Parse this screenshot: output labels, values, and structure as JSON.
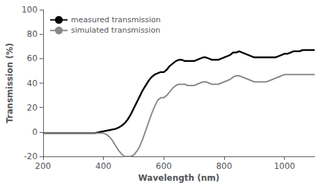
{
  "chart_data": {
    "type": "line",
    "title": "",
    "xlabel": "Wavelength (nm)",
    "ylabel": "Transmission (%)",
    "xlim": [
      200,
      1100
    ],
    "ylim": [
      -20,
      100
    ],
    "xticks": [
      200,
      400,
      600,
      800,
      1000
    ],
    "yticks": [
      -20,
      0,
      20,
      40,
      60,
      80,
      100
    ],
    "grid": false,
    "legend": "upper left",
    "x": [
      200,
      210,
      220,
      230,
      240,
      250,
      260,
      270,
      280,
      290,
      300,
      310,
      320,
      330,
      340,
      350,
      360,
      370,
      380,
      390,
      400,
      410,
      420,
      430,
      440,
      450,
      460,
      470,
      480,
      490,
      500,
      510,
      520,
      530,
      540,
      550,
      560,
      570,
      580,
      590,
      600,
      610,
      620,
      630,
      640,
      650,
      660,
      670,
      680,
      690,
      700,
      710,
      720,
      730,
      740,
      750,
      760,
      770,
      780,
      790,
      800,
      810,
      820,
      830,
      840,
      850,
      860,
      870,
      880,
      890,
      900,
      910,
      920,
      930,
      940,
      950,
      960,
      970,
      980,
      990,
      1000,
      1010,
      1020,
      1030,
      1040,
      1050,
      1060,
      1070,
      1080,
      1090,
      1100
    ],
    "series": [
      {
        "name": "measured transmission",
        "color": "#000000",
        "values": [
          -1,
          -1,
          -1,
          -1,
          -1,
          -1,
          -1,
          -1,
          -1,
          -1,
          -1,
          -1,
          -1,
          -1,
          -1,
          -1,
          -1,
          -1,
          -0.5,
          0,
          0.5,
          1,
          1.5,
          2,
          2.5,
          3.5,
          5,
          7,
          10,
          14,
          19,
          24,
          29,
          34,
          38,
          42,
          45,
          47,
          48,
          49,
          49,
          51,
          54,
          56,
          58,
          59,
          59,
          58,
          58,
          58,
          58,
          59,
          60,
          61,
          61,
          60,
          59,
          59,
          59,
          60,
          61,
          62,
          63,
          65,
          65,
          66,
          65,
          64,
          63,
          62,
          61,
          61,
          61,
          61,
          61,
          61,
          61,
          61,
          62,
          63,
          64,
          64,
          65,
          66,
          66,
          66,
          67,
          67,
          67,
          67,
          67
        ]
      },
      {
        "name": "simulated transmission",
        "color": "#888888",
        "values": [
          -1,
          -1,
          -1,
          -1,
          -1,
          -1,
          -1,
          -1,
          -1,
          -1,
          -1,
          -1,
          -1,
          -1,
          -1,
          -1,
          -1,
          -1,
          -1,
          -1,
          -1,
          -2,
          -4,
          -7,
          -11,
          -15,
          -18,
          -20,
          -20,
          -20,
          -19,
          -16,
          -12,
          -6,
          1,
          8,
          15,
          21,
          26,
          28,
          28,
          30,
          33,
          36,
          38,
          39,
          39,
          39,
          38,
          38,
          38,
          39,
          40,
          41,
          41,
          40,
          39,
          39,
          39,
          40,
          41,
          42,
          43,
          45,
          46,
          46,
          45,
          44,
          43,
          42,
          41,
          41,
          41,
          41,
          41,
          42,
          43,
          44,
          45,
          46,
          47,
          47,
          47,
          47,
          47,
          47,
          47,
          47,
          47,
          47,
          47
        ]
      }
    ]
  }
}
